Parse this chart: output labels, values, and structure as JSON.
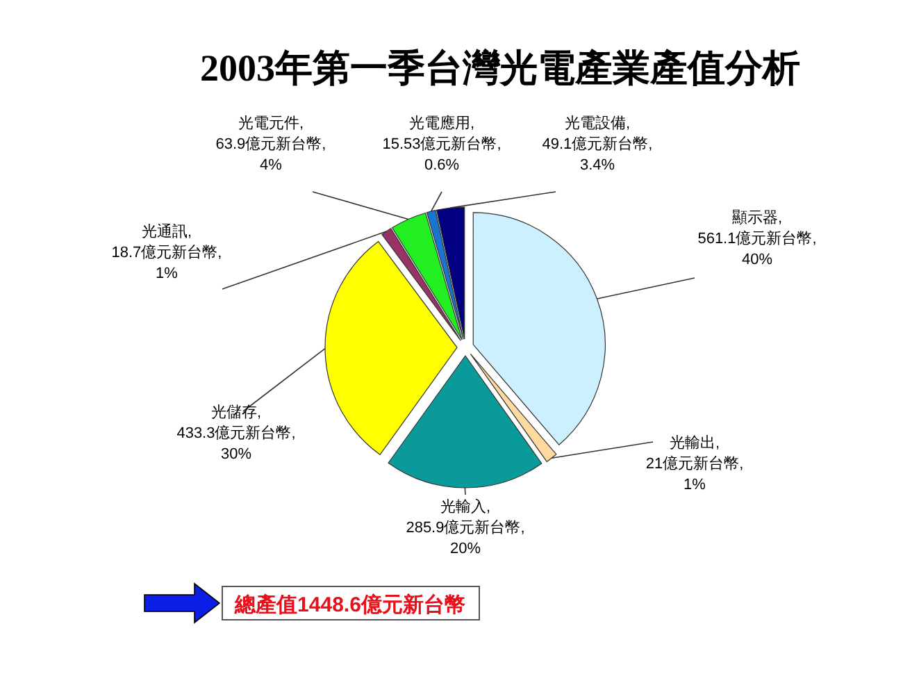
{
  "chart_data": {
    "type": "pie",
    "title": "2003年第一季台灣光電產業產值分析",
    "categories": [
      "顯示器",
      "光輸出",
      "光輸入",
      "光儲存",
      "光通訊",
      "光電元件",
      "光電應用",
      "光電設備"
    ],
    "values": [
      561.1,
      21,
      285.9,
      433.3,
      18.7,
      63.9,
      15.53,
      49.1
    ],
    "value_labels": [
      ", 561.1億元新台幣, 40%",
      ", 21億元新台幣, 1%",
      ", 285.9億元新台幣, 20%",
      ", 433.3億元新台幣, 30%",
      ", 18.7億元新台幣, 1%",
      ", 63.9億元新台幣, 4%",
      ", 15.53億元新台幣, 0.6%",
      ", 49.1億元新台幣, 3.4%"
    ],
    "colors": [
      "#ccf0ff",
      "#ffd9a0",
      "#0a9a9a",
      "#ffff00",
      "#993366",
      "#22ee22",
      "#1a75d1",
      "#000080"
    ],
    "annotations": [
      "總產值1448.6億元新台幣"
    ]
  }
}
